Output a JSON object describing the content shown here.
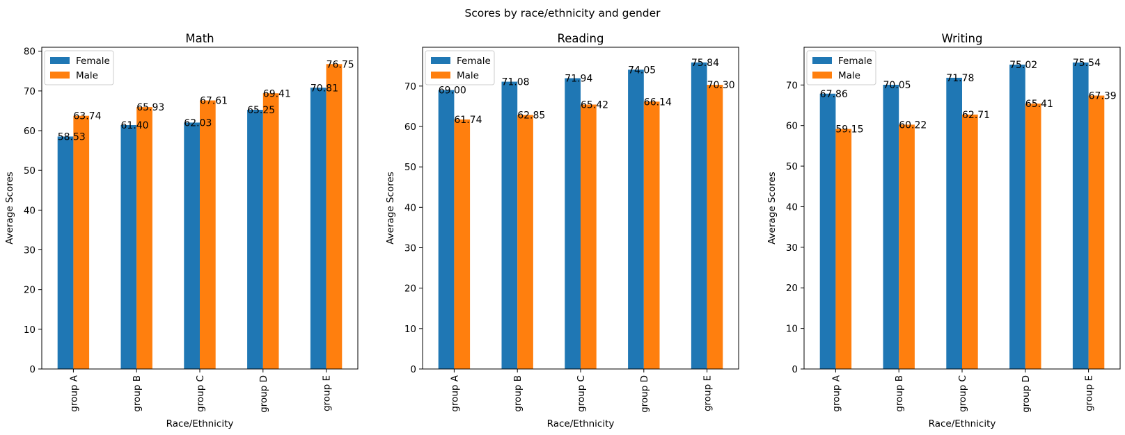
{
  "figure": {
    "suptitle": "Scores by race/ethnicity and gender"
  },
  "colors": {
    "Female": "#1f77b4",
    "Male": "#ff7f0e"
  },
  "chart_data": [
    {
      "type": "bar",
      "title": "Math",
      "xlabel": "Race/Ethnicity",
      "ylabel": "Average Scores",
      "ylim": [
        0,
        81
      ],
      "yticks": [
        0,
        10,
        20,
        30,
        40,
        50,
        60,
        70,
        80
      ],
      "categories": [
        "group A",
        "group B",
        "group C",
        "group D",
        "group E"
      ],
      "series": [
        {
          "name": "Female",
          "values": [
            58.53,
            61.4,
            62.03,
            65.25,
            70.81
          ],
          "labels": [
            "58.53",
            "61.40",
            "62.03",
            "65.25",
            "70.81"
          ]
        },
        {
          "name": "Male",
          "values": [
            63.74,
            65.93,
            67.61,
            69.41,
            76.75
          ],
          "labels": [
            "63.74",
            "65.93",
            "67.61",
            "69.41",
            "76.75"
          ]
        }
      ],
      "legend": "upper-left",
      "grid": false
    },
    {
      "type": "bar",
      "title": "Reading",
      "xlabel": "Race/Ethnicity",
      "ylabel": "Average Scores",
      "ylim": [
        0,
        79.6
      ],
      "yticks": [
        0,
        10,
        20,
        30,
        40,
        50,
        60,
        70
      ],
      "categories": [
        "group A",
        "group B",
        "group C",
        "group D",
        "group E"
      ],
      "series": [
        {
          "name": "Female",
          "values": [
            69.0,
            71.08,
            71.94,
            74.05,
            75.84
          ],
          "labels": [
            "69.00",
            "71.08",
            "71.94",
            "74.05",
            "75.84"
          ]
        },
        {
          "name": "Male",
          "values": [
            61.74,
            62.85,
            65.42,
            66.14,
            70.3
          ],
          "labels": [
            "61.74",
            "62.85",
            "65.42",
            "66.14",
            "70.30"
          ]
        }
      ],
      "legend": "upper-left",
      "grid": false
    },
    {
      "type": "bar",
      "title": "Writing",
      "xlabel": "Race/Ethnicity",
      "ylabel": "Average Scores",
      "ylim": [
        0,
        79.3
      ],
      "yticks": [
        0,
        10,
        20,
        30,
        40,
        50,
        60,
        70
      ],
      "categories": [
        "group A",
        "group B",
        "group C",
        "group D",
        "group E"
      ],
      "series": [
        {
          "name": "Female",
          "values": [
            67.86,
            70.05,
            71.78,
            75.02,
            75.54
          ],
          "labels": [
            "67.86",
            "70.05",
            "71.78",
            "75.02",
            "75.54"
          ]
        },
        {
          "name": "Male",
          "values": [
            59.15,
            60.22,
            62.71,
            65.41,
            67.39
          ],
          "labels": [
            "59.15",
            "60.22",
            "62.71",
            "65.41",
            "67.39"
          ]
        }
      ],
      "legend": "upper-left",
      "grid": false
    }
  ]
}
